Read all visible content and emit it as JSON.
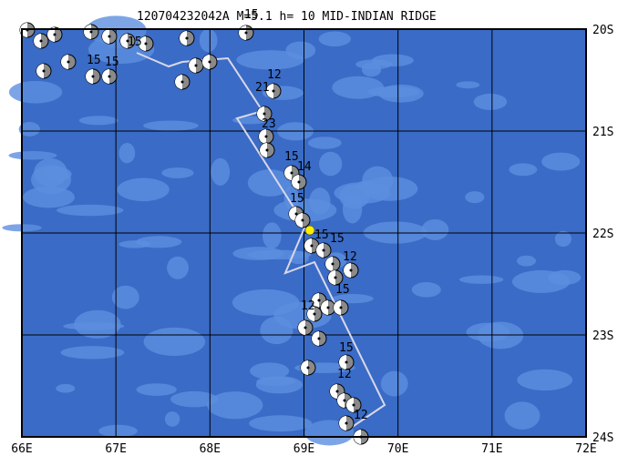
{
  "title": "120704232042A M=5.1 h= 10 MID-INDIAN RIDGE",
  "lon_labels": [
    "66E",
    "67E",
    "68E",
    "69E",
    "70E",
    "71E",
    "72E"
  ],
  "lat_labels": [
    "20S",
    "21S",
    "22S",
    "23S",
    "24S"
  ],
  "event_labels": [
    "15",
    "15",
    "15",
    "15",
    "12",
    "21",
    "23",
    "15",
    "14",
    "15",
    "15",
    "15",
    "12",
    "15",
    "12",
    "15",
    "12",
    "12"
  ]
}
